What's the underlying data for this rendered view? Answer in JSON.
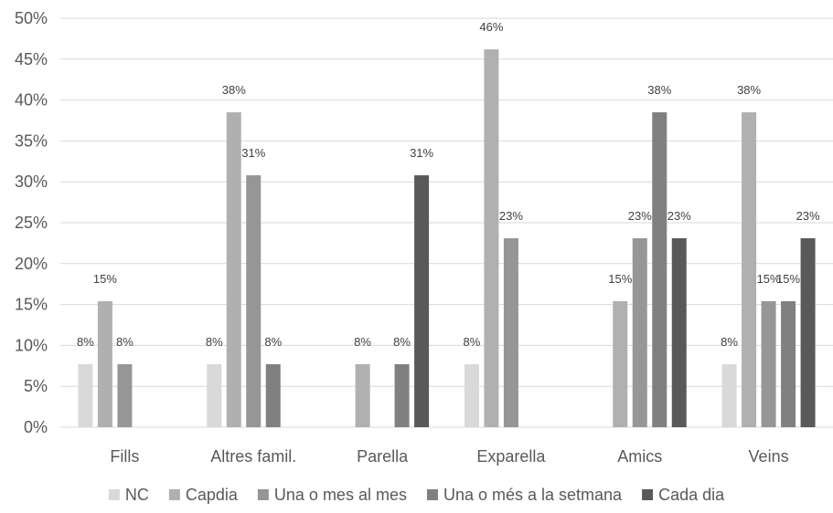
{
  "chart_data": {
    "type": "bar",
    "title": "",
    "xlabel": "",
    "ylabel": "",
    "ylim": [
      0,
      50
    ],
    "y_ticks": [
      "0%",
      "5%",
      "10%",
      "15%",
      "20%",
      "25%",
      "30%",
      "35%",
      "40%",
      "45%",
      "50%"
    ],
    "categories": [
      "Fills",
      "Altres famil.",
      "Parella",
      "Exparella",
      "Amics",
      "Veins"
    ],
    "grid": true,
    "legend_position": "bottom",
    "series": [
      {
        "name": "NC",
        "color": "#d9d9d9",
        "values": [
          7.7,
          7.7,
          null,
          7.7,
          null,
          7.7
        ],
        "labels": [
          "8%",
          "8%",
          "",
          "8%",
          "",
          "8%"
        ]
      },
      {
        "name": "Capdia",
        "color": "#b0b0b0",
        "values": [
          15.4,
          38.5,
          7.7,
          46.2,
          15.4,
          38.5
        ],
        "labels": [
          "15%",
          "38%",
          "8%",
          "46%",
          "15%",
          "38%"
        ]
      },
      {
        "name": "Una o mes al mes",
        "color": "#969696",
        "values": [
          7.7,
          30.8,
          null,
          23.1,
          23.1,
          15.4
        ],
        "labels": [
          "8%",
          "31%",
          "",
          "23%",
          "23%",
          "15%"
        ]
      },
      {
        "name": "Una o més a la setmana",
        "color": "#808080",
        "values": [
          null,
          7.7,
          7.7,
          null,
          38.5,
          15.4
        ],
        "labels": [
          "",
          "8%",
          "8%",
          "",
          "38%",
          "15%"
        ]
      },
      {
        "name": "Cada dia",
        "color": "#595959",
        "values": [
          null,
          null,
          30.8,
          null,
          23.1,
          23.1
        ],
        "labels": [
          "",
          "",
          "31%",
          "",
          "23%",
          "23%"
        ]
      }
    ]
  }
}
